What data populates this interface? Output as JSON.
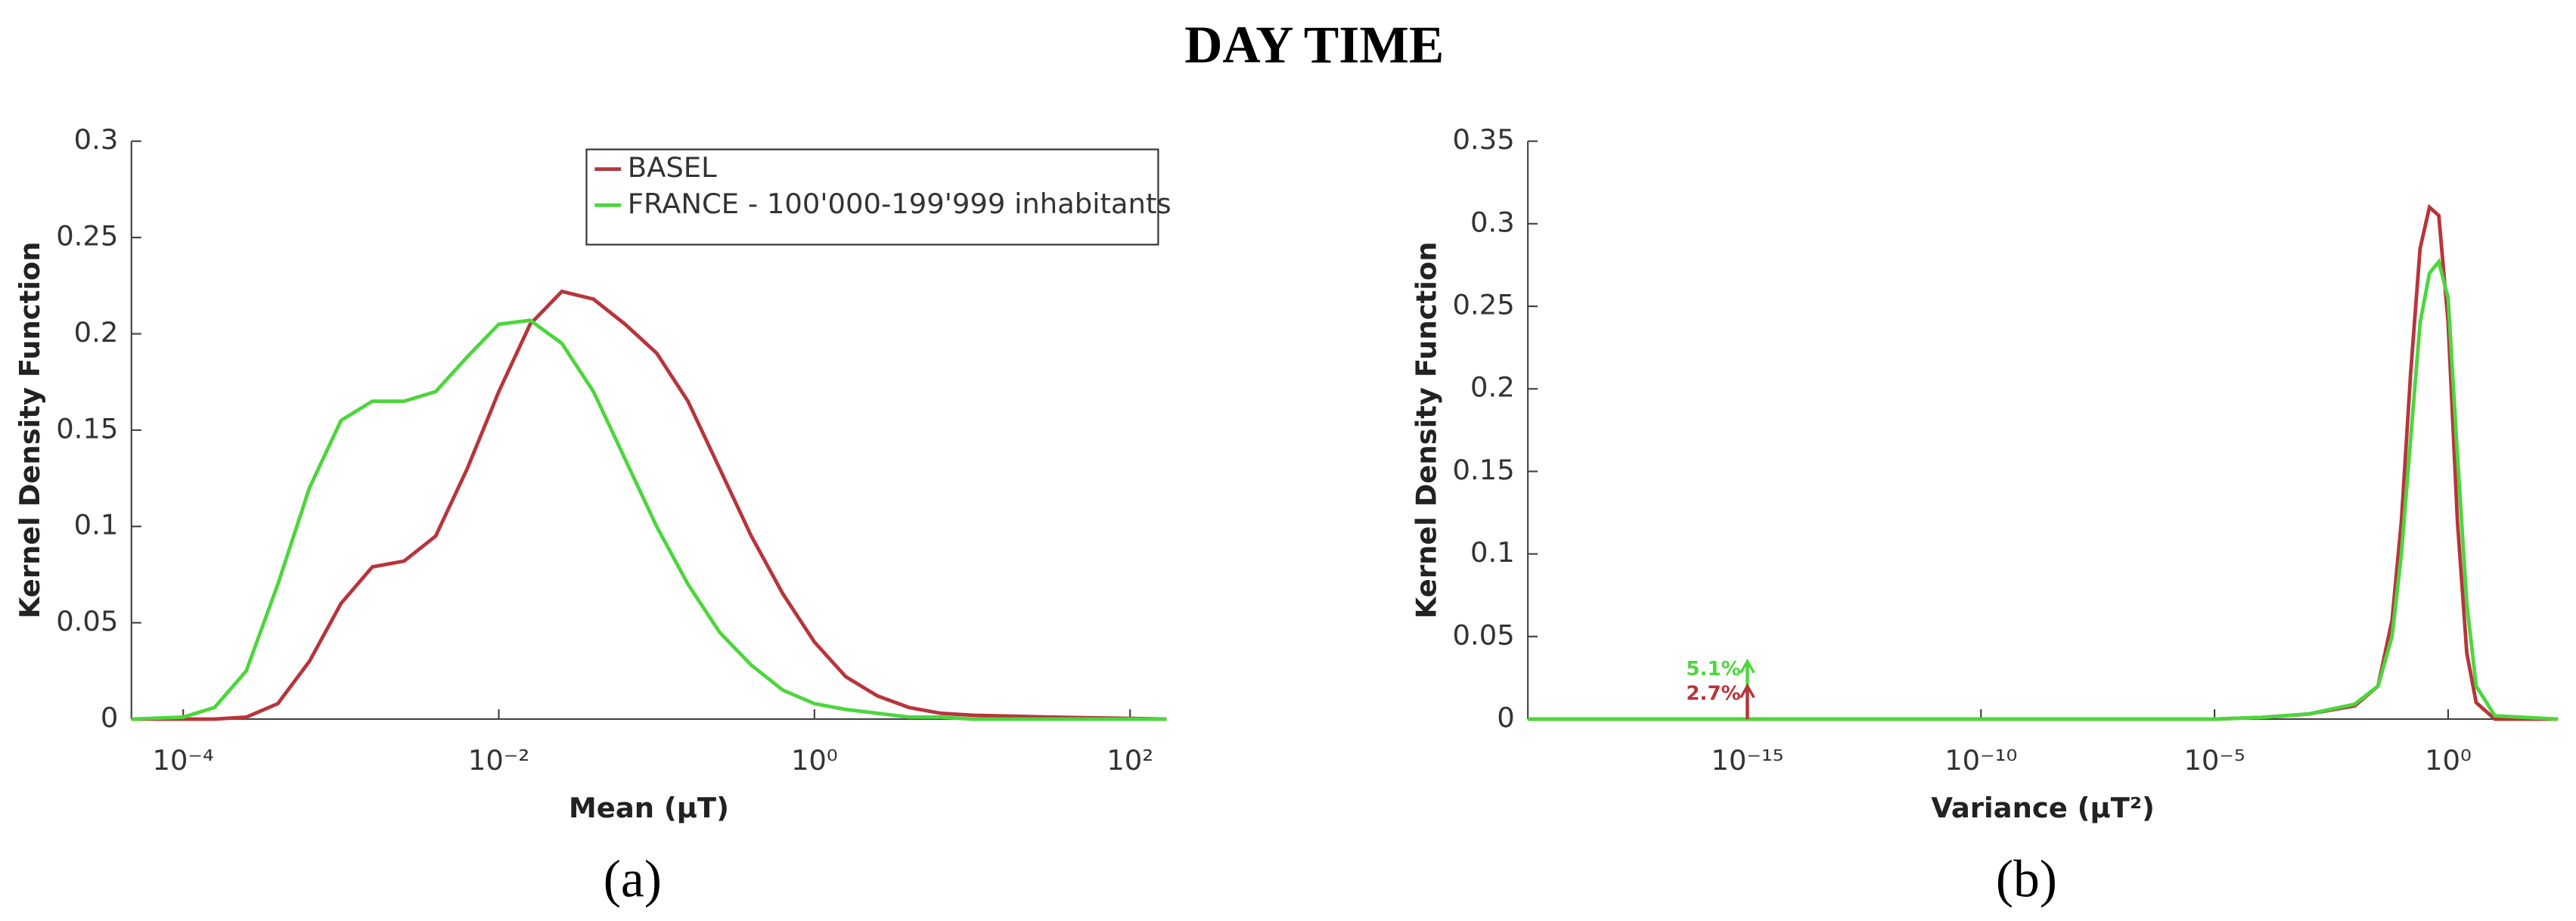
{
  "title": "DAY TIME",
  "chart_data": [
    {
      "type": "line",
      "panel_label": "(a)",
      "xlabel": "Mean (μT)",
      "ylabel": "Kernel Density Function",
      "xscale": "log",
      "xlim": [
        4.7e-05,
        170
      ],
      "ylim": [
        0,
        0.3
      ],
      "xticks": [
        {
          "value": 0.0001,
          "label": "10⁻⁴"
        },
        {
          "value": 0.01,
          "label": "10⁻²"
        },
        {
          "value": 1,
          "label": "10⁰"
        },
        {
          "value": 100,
          "label": "10²"
        }
      ],
      "yticks": [
        0,
        0.05,
        0.1,
        0.15,
        0.2,
        0.25,
        0.3
      ],
      "legend": "upper right",
      "x": [
        4.7e-05,
        0.0001,
        0.000158,
        0.000251,
        0.000398,
        0.000631,
        0.001,
        0.00158,
        0.00251,
        0.00398,
        0.00631,
        0.01,
        0.0158,
        0.0251,
        0.0398,
        0.0631,
        0.1,
        0.158,
        0.251,
        0.398,
        0.631,
        1,
        1.58,
        2.51,
        3.98,
        6.31,
        10,
        31.6,
        170
      ],
      "series": [
        {
          "name": "BASEL",
          "color": "#b8343b",
          "values": [
            0,
            0,
            0,
            0.001,
            0.008,
            0.03,
            0.06,
            0.079,
            0.082,
            0.095,
            0.13,
            0.17,
            0.205,
            0.222,
            0.218,
            0.205,
            0.19,
            0.165,
            0.13,
            0.095,
            0.065,
            0.04,
            0.022,
            0.012,
            0.006,
            0.003,
            0.002,
            0.001,
            0
          ]
        },
        {
          "name": "FRANCE - 100'000-199'999 inhabitants",
          "color": "#4cd63c",
          "values": [
            0,
            0.001,
            0.006,
            0.025,
            0.07,
            0.12,
            0.155,
            0.165,
            0.165,
            0.17,
            0.188,
            0.205,
            0.207,
            0.195,
            0.17,
            0.135,
            0.1,
            0.07,
            0.045,
            0.028,
            0.015,
            0.008,
            0.005,
            0.003,
            0.001,
            0.001,
            0,
            0,
            0
          ]
        }
      ]
    },
    {
      "type": "line",
      "panel_label": "(b)",
      "xlabel": "Variance (μT²)",
      "ylabel": "Kernel Density Function",
      "xscale": "log",
      "xlim": [
        2e-20,
        224
      ],
      "ylim": [
        0,
        0.35
      ],
      "xticks": [
        {
          "value": 1e-15,
          "label": "10⁻¹⁵"
        },
        {
          "value": 1e-10,
          "label": "10⁻¹⁰"
        },
        {
          "value": 1e-05,
          "label": "10⁻⁵"
        },
        {
          "value": 1,
          "label": "10⁰"
        }
      ],
      "yticks": [
        0,
        0.05,
        0.1,
        0.15,
        0.2,
        0.25,
        0.3,
        0.35
      ],
      "x": [
        2e-20,
        1e-05,
        0.0001,
        0.001,
        0.01,
        0.0316,
        0.0631,
        0.1,
        0.158,
        0.251,
        0.398,
        0.631,
        1,
        1.58,
        2.51,
        3.98,
        10,
        224
      ],
      "series": [
        {
          "color": "#b8343b",
          "values": [
            0,
            0,
            0.001,
            0.003,
            0.008,
            0.02,
            0.06,
            0.12,
            0.21,
            0.285,
            0.31,
            0.305,
            0.24,
            0.12,
            0.04,
            0.01,
            0,
            0
          ]
        },
        {
          "color": "#4cd63c",
          "values": [
            0,
            0,
            0.001,
            0.003,
            0.009,
            0.02,
            0.05,
            0.1,
            0.17,
            0.24,
            0.27,
            0.277,
            0.255,
            0.16,
            0.07,
            0.02,
            0.002,
            0
          ]
        }
      ],
      "annotations": [
        {
          "text": "5.1%",
          "x": 1e-15,
          "y": 0.035,
          "color": "#4cd63c"
        },
        {
          "text": "2.7%",
          "x": 1e-15,
          "y": 0.02,
          "color": "#b8343b"
        }
      ]
    }
  ]
}
